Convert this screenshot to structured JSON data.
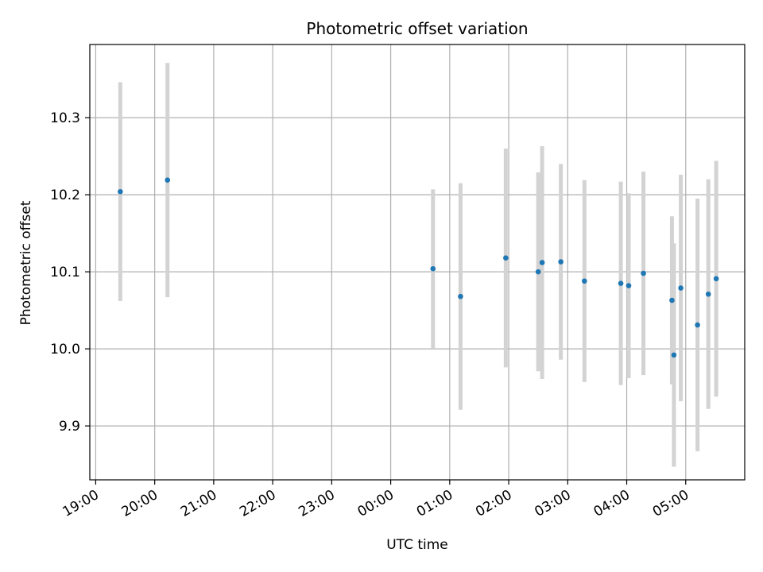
{
  "chart_data": {
    "type": "scatter",
    "title": "Photometric offset variation",
    "xlabel": "UTC time",
    "ylabel": "Photometric offset",
    "x_tick_labels": [
      "19:00",
      "20:00",
      "21:00",
      "22:00",
      "23:00",
      "00:00",
      "01:00",
      "02:00",
      "03:00",
      "04:00",
      "05:00"
    ],
    "x_tick_hours": [
      0,
      1,
      2,
      3,
      4,
      5,
      6,
      7,
      8,
      9,
      10
    ],
    "xlim_hours": [
      -0.1,
      11.0
    ],
    "y_ticks": [
      9.9,
      10.0,
      10.1,
      10.2,
      10.3
    ],
    "y_tick_labels": [
      "9.9",
      "10.0",
      "10.1",
      "10.2",
      "10.3"
    ],
    "ylim": [
      9.83,
      10.395
    ],
    "grid": true,
    "point_color": "#1f77b4",
    "errorbar_color": "#d3d3d3",
    "points": [
      {
        "time": "19:25",
        "y": 10.204,
        "err": 0.142
      },
      {
        "time": "20:13",
        "y": 10.219,
        "err": 0.152
      },
      {
        "time": "00:43",
        "y": 10.104,
        "err": 0.103
      },
      {
        "time": "01:11",
        "y": 10.068,
        "err": 0.147
      },
      {
        "time": "01:57",
        "y": 10.118,
        "err": 0.142
      },
      {
        "time": "02:30",
        "y": 10.1,
        "err": 0.129
      },
      {
        "time": "02:34",
        "y": 10.112,
        "err": 0.151
      },
      {
        "time": "02:53",
        "y": 10.113,
        "err": 0.127
      },
      {
        "time": "03:17",
        "y": 10.088,
        "err": 0.131
      },
      {
        "time": "03:54",
        "y": 10.085,
        "err": 0.132
      },
      {
        "time": "04:02",
        "y": 10.082,
        "err": 0.12
      },
      {
        "time": "04:17",
        "y": 10.098,
        "err": 0.132
      },
      {
        "time": "04:46",
        "y": 10.063,
        "err": 0.109
      },
      {
        "time": "04:48",
        "y": 9.992,
        "err": 0.145
      },
      {
        "time": "04:55",
        "y": 10.079,
        "err": 0.147
      },
      {
        "time": "05:12",
        "y": 10.031,
        "err": 0.164
      },
      {
        "time": "05:23",
        "y": 10.071,
        "err": 0.149
      },
      {
        "time": "05:31",
        "y": 10.091,
        "err": 0.153
      }
    ]
  }
}
